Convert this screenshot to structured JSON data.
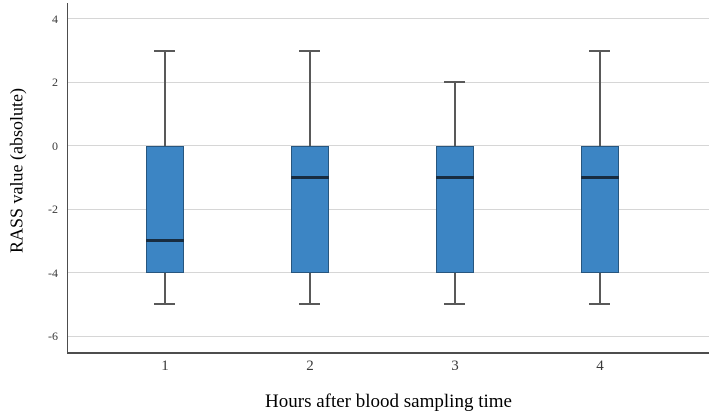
{
  "chart_data": {
    "type": "boxplot",
    "title": "",
    "xlabel": "Hours after blood sampling time",
    "ylabel": "RASS value (absolute)",
    "categories": [
      "1",
      "2",
      "3",
      "4"
    ],
    "series": [
      {
        "category": "1",
        "whisker_low": -5,
        "q1": -4,
        "median": -3,
        "q3": 0,
        "whisker_high": 3
      },
      {
        "category": "2",
        "whisker_low": -5,
        "q1": -4,
        "median": -1,
        "q3": 0,
        "whisker_high": 3
      },
      {
        "category": "3",
        "whisker_low": -5,
        "q1": -4,
        "median": -1,
        "q3": 0,
        "whisker_high": 2
      },
      {
        "category": "4",
        "whisker_low": -5,
        "q1": -4,
        "median": -1,
        "q3": 0,
        "whisker_high": 3
      }
    ],
    "yticks": [
      4,
      2,
      0,
      -2,
      -4,
      -6
    ],
    "ytick_labels": [
      "4",
      "2",
      "0",
      "-2",
      "-4",
      "-6"
    ],
    "ylim": [
      -6.5,
      4.5
    ],
    "grid": true,
    "legend": "none",
    "colors": {
      "box_fill": "#3c85c4",
      "box_border": "#27567f",
      "median": "#182c40",
      "whisker": "#595959",
      "gridline": "#d6d6d6",
      "axis": "#4d4d4d",
      "tick_text": "#3a3a3a",
      "title_text": "#000000"
    }
  }
}
